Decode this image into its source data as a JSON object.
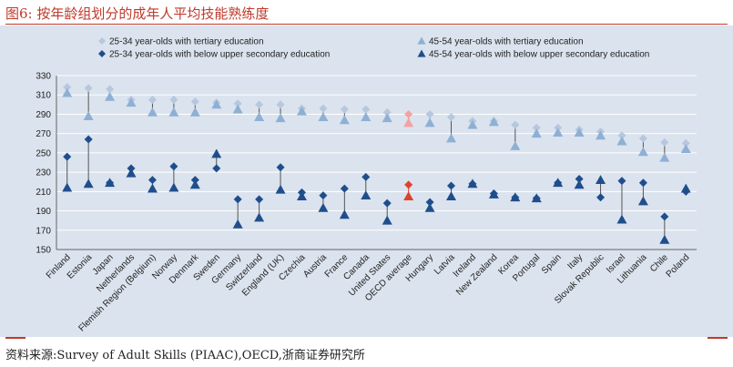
{
  "figure": {
    "label": "图6:",
    "title": "按年龄组划分的成年人平均技能熟练度",
    "source": "资料来源:Survey of Adult Skills (PIAAC),OECD,浙商证券研究所"
  },
  "colors": {
    "tertiary_25_34": "#b7c7de",
    "tertiary_45_54": "#8eb0d4",
    "below_25_34": "#1f4e8c",
    "below_45_54": "#1f4e8c",
    "oecd_highlight_light": "#f4a2a0",
    "oecd_highlight_dark": "#e0412f",
    "connector": "#555555",
    "panel_bg": "#dbe3ee"
  },
  "chart_data": {
    "type": "scatter",
    "ylim": [
      150,
      330
    ],
    "yticks": [
      150,
      170,
      190,
      210,
      230,
      250,
      270,
      290,
      310,
      330
    ],
    "grid": true,
    "legend": "top",
    "highlight_category": "OECD average",
    "categories": [
      "Finland",
      "Estonia",
      "Japan",
      "Netherlands",
      "Flemish Region (Belgium)",
      "Norway",
      "Denmark",
      "Sweden",
      "Germany",
      "Switzerland",
      "England (UK)",
      "Czechia",
      "Austria",
      "France",
      "Canada",
      "United States",
      "OECD average",
      "Hungary",
      "Latvia",
      "Ireland",
      "New Zealand",
      "Korea",
      "Portugal",
      "Spain",
      "Italy",
      "Slovak Republic",
      "Israel",
      "Lithuania",
      "Chile",
      "Poland"
    ],
    "series": [
      {
        "name": "25-34 year-olds with tertiary education",
        "marker": "diamond",
        "values": [
          318,
          317,
          316,
          305,
          305,
          305,
          303,
          302,
          301,
          300,
          300,
          296,
          296,
          295,
          295,
          292,
          290,
          290,
          287,
          283,
          283,
          279,
          276,
          276,
          274,
          272,
          268,
          265,
          261,
          260
        ]
      },
      {
        "name": "45-54 year-olds with tertiary education",
        "marker": "triangle",
        "values": [
          312,
          288,
          308,
          302,
          292,
          292,
          292,
          300,
          295,
          287,
          286,
          293,
          287,
          284,
          287,
          286,
          281,
          281,
          265,
          279,
          282,
          257,
          270,
          271,
          271,
          268,
          262,
          251,
          245,
          254
        ]
      },
      {
        "name": "25-34 year-olds with below upper secondary education",
        "marker": "diamond",
        "values": [
          246,
          264,
          219,
          234,
          222,
          236,
          222,
          234,
          202,
          202,
          235,
          209,
          206,
          213,
          225,
          198,
          217,
          199,
          216,
          218,
          208,
          204,
          203,
          219,
          223,
          204,
          221,
          219,
          184,
          210
        ]
      },
      {
        "name": "45-54 year-olds with below upper secondary education",
        "marker": "triangle",
        "values": [
          214,
          218,
          219,
          229,
          213,
          214,
          217,
          249,
          176,
          183,
          212,
          205,
          193,
          186,
          206,
          180,
          205,
          193,
          205,
          218,
          207,
          204,
          203,
          219,
          217,
          222,
          181,
          200,
          160,
          213
        ]
      }
    ]
  }
}
